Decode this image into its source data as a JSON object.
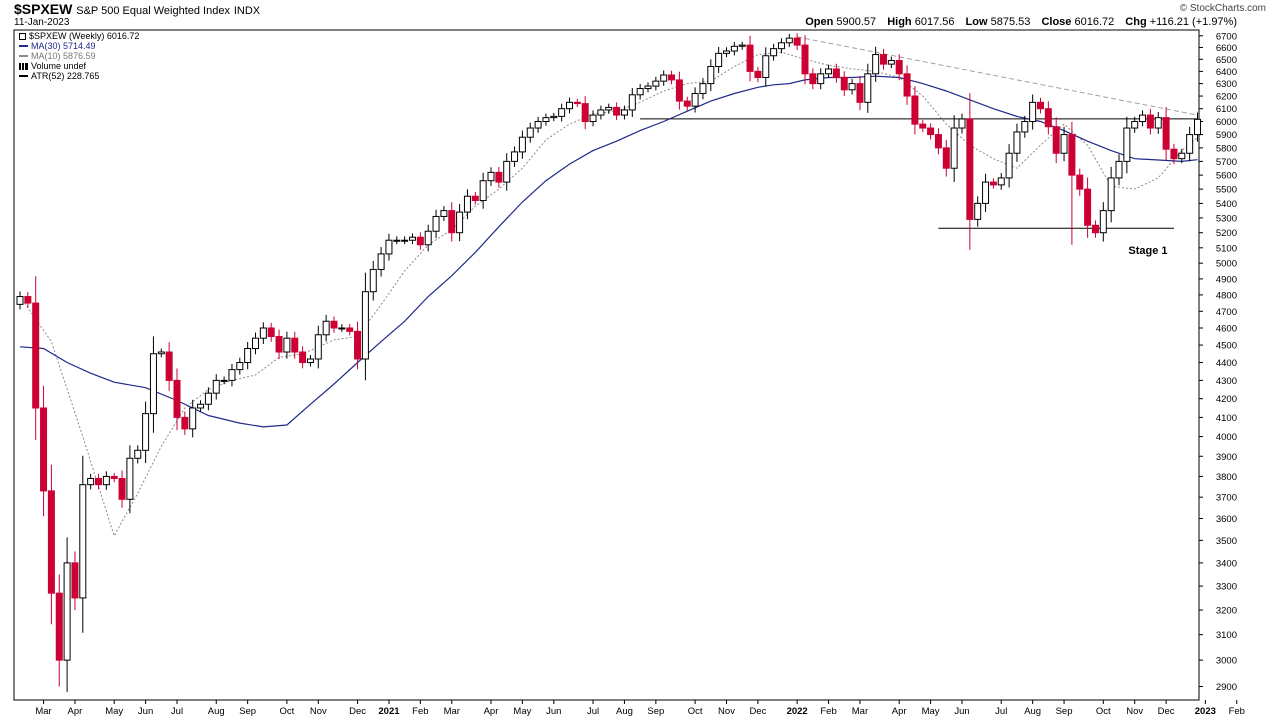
{
  "header": {
    "symbol": "$SPXEW",
    "name": "S&P 500 Equal Weighted Index",
    "exchange": "INDX",
    "date": "11-Jan-2023",
    "brand": "© StockCharts.com",
    "open_label": "Open",
    "open_value": "5900.57",
    "high_label": "High",
    "high_value": "6017.56",
    "low_label": "Low",
    "low_value": "5875.53",
    "close_label": "Close",
    "close_value": "6016.72",
    "chg_label": "Chg",
    "chg_value": "+116.21 (+1.97%)"
  },
  "legend": {
    "main": "$SPXEW (Weekly) 6016.72",
    "ma30": "MA(30) 5714.49",
    "ma10": "MA(10) 5876.59",
    "volume": "Volume undef",
    "atr": "ATR(52) 228.765"
  },
  "colors": {
    "up": "#000000",
    "down": "#cc0033",
    "ma30": "#1f2a8a",
    "ma10": "#8a8a8a",
    "trend": "#a0a0a0"
  },
  "chart_data": {
    "type": "candlestick",
    "scale": "log",
    "ylim": [
      2850,
      6750
    ],
    "y_ticks": [
      2900,
      3000,
      3100,
      3200,
      3300,
      3400,
      3500,
      3600,
      3700,
      3800,
      3900,
      4000,
      4100,
      4200,
      4300,
      4400,
      4500,
      4600,
      4700,
      4800,
      4900,
      5000,
      5100,
      5200,
      5300,
      5400,
      5500,
      5600,
      5700,
      5800,
      5900,
      6000,
      6100,
      6200,
      6300,
      6400,
      6500,
      6600,
      6700
    ],
    "x_labels": [
      {
        "label": "Mar",
        "i": 3,
        "bold": false
      },
      {
        "label": "Apr",
        "i": 7,
        "bold": false
      },
      {
        "label": "May",
        "i": 12,
        "bold": false
      },
      {
        "label": "Jun",
        "i": 16,
        "bold": false
      },
      {
        "label": "Jul",
        "i": 20,
        "bold": false
      },
      {
        "label": "Aug",
        "i": 25,
        "bold": false
      },
      {
        "label": "Sep",
        "i": 29,
        "bold": false
      },
      {
        "label": "Oct",
        "i": 34,
        "bold": false
      },
      {
        "label": "Nov",
        "i": 38,
        "bold": false
      },
      {
        "label": "Dec",
        "i": 43,
        "bold": false
      },
      {
        "label": "2021",
        "i": 47,
        "bold": true
      },
      {
        "label": "Feb",
        "i": 51,
        "bold": false
      },
      {
        "label": "Mar",
        "i": 55,
        "bold": false
      },
      {
        "label": "Apr",
        "i": 60,
        "bold": false
      },
      {
        "label": "May",
        "i": 64,
        "bold": false
      },
      {
        "label": "Jun",
        "i": 68,
        "bold": false
      },
      {
        "label": "Jul",
        "i": 73,
        "bold": false
      },
      {
        "label": "Aug",
        "i": 77,
        "bold": false
      },
      {
        "label": "Sep",
        "i": 81,
        "bold": false
      },
      {
        "label": "Oct",
        "i": 86,
        "bold": false
      },
      {
        "label": "Nov",
        "i": 90,
        "bold": false
      },
      {
        "label": "Dec",
        "i": 94,
        "bold": false
      },
      {
        "label": "2022",
        "i": 99,
        "bold": true
      },
      {
        "label": "Feb",
        "i": 103,
        "bold": false
      },
      {
        "label": "Mar",
        "i": 107,
        "bold": false
      },
      {
        "label": "Apr",
        "i": 112,
        "bold": false
      },
      {
        "label": "May",
        "i": 116,
        "bold": false
      },
      {
        "label": "Jun",
        "i": 120,
        "bold": false
      },
      {
        "label": "Jul",
        "i": 125,
        "bold": false
      },
      {
        "label": "Aug",
        "i": 129,
        "bold": false
      },
      {
        "label": "Sep",
        "i": 133,
        "bold": false
      },
      {
        "label": "Oct",
        "i": 138,
        "bold": false
      },
      {
        "label": "Nov",
        "i": 142,
        "bold": false
      },
      {
        "label": "Dec",
        "i": 146,
        "bold": false
      },
      {
        "label": "2023",
        "i": 151,
        "bold": true
      },
      {
        "label": "Feb",
        "i": 155,
        "bold": false
      }
    ],
    "closes": [
      4790,
      4750,
      4150,
      3730,
      3270,
      3000,
      3400,
      3250,
      3760,
      3790,
      3760,
      3800,
      3790,
      3690,
      3890,
      3930,
      4120,
      4450,
      4460,
      4300,
      4100,
      4040,
      4150,
      4170,
      4230,
      4300,
      4300,
      4360,
      4400,
      4480,
      4540,
      4600,
      4550,
      4460,
      4540,
      4460,
      4400,
      4420,
      4560,
      4640,
      4600,
      4600,
      4580,
      4420,
      4820,
      4960,
      5060,
      5150,
      5150,
      5150,
      5170,
      5120,
      5210,
      5310,
      5350,
      5200,
      5340,
      5450,
      5420,
      5560,
      5620,
      5550,
      5700,
      5770,
      5880,
      5950,
      6000,
      6030,
      6040,
      6100,
      6150,
      6140,
      6000,
      6050,
      6090,
      6110,
      6050,
      6090,
      6210,
      6260,
      6280,
      6320,
      6370,
      6330,
      6160,
      6120,
      6220,
      6300,
      6440,
      6550,
      6570,
      6610,
      6620,
      6400,
      6350,
      6530,
      6590,
      6640,
      6680,
      6620,
      6380,
      6300,
      6380,
      6420,
      6350,
      6250,
      6300,
      6150,
      6380,
      6540,
      6460,
      6490,
      6380,
      6200,
      5980,
      5950,
      5900,
      5800,
      5650,
      5950,
      6020,
      5290,
      5400,
      5550,
      5530,
      5580,
      5760,
      5920,
      6000,
      6150,
      6100,
      5960,
      5760,
      5900,
      5600,
      5500,
      5250,
      5200,
      5350,
      5580,
      5700,
      5950,
      6000,
      6050,
      5950,
      6030,
      5790,
      5720,
      5760,
      5900,
      6017
    ],
    "lows_override": [
      {
        "i": 5,
        "low": 2900
      },
      {
        "i": 6,
        "low": 2880
      },
      {
        "i": 134,
        "low": 5120
      }
    ],
    "ma30": [
      [
        0,
        4490
      ],
      [
        3,
        4480
      ],
      [
        6,
        4400
      ],
      [
        9,
        4340
      ],
      [
        12,
        4290
      ],
      [
        16,
        4260
      ],
      [
        20,
        4190
      ],
      [
        24,
        4110
      ],
      [
        28,
        4070
      ],
      [
        31,
        4050
      ],
      [
        34,
        4060
      ],
      [
        37,
        4170
      ],
      [
        40,
        4280
      ],
      [
        43,
        4400
      ],
      [
        46,
        4520
      ],
      [
        49,
        4640
      ],
      [
        52,
        4790
      ],
      [
        55,
        4920
      ],
      [
        58,
        5070
      ],
      [
        61,
        5240
      ],
      [
        64,
        5410
      ],
      [
        67,
        5560
      ],
      [
        70,
        5680
      ],
      [
        73,
        5780
      ],
      [
        76,
        5850
      ],
      [
        79,
        5930
      ],
      [
        82,
        6000
      ],
      [
        85,
        6080
      ],
      [
        88,
        6160
      ],
      [
        91,
        6220
      ],
      [
        94,
        6270
      ],
      [
        96,
        6290
      ],
      [
        98,
        6300
      ],
      [
        100,
        6330
      ],
      [
        103,
        6350
      ],
      [
        106,
        6350
      ],
      [
        109,
        6360
      ],
      [
        112,
        6350
      ],
      [
        115,
        6300
      ],
      [
        118,
        6240
      ],
      [
        121,
        6170
      ],
      [
        124,
        6100
      ],
      [
        127,
        6040
      ],
      [
        130,
        6000
      ],
      [
        133,
        5930
      ],
      [
        136,
        5850
      ],
      [
        139,
        5780
      ],
      [
        142,
        5720
      ],
      [
        145,
        5710
      ],
      [
        148,
        5700
      ],
      [
        150,
        5712
      ]
    ],
    "ma10": [
      [
        0,
        4790
      ],
      [
        4,
        4520
      ],
      [
        8,
        4000
      ],
      [
        12,
        3520
      ],
      [
        15,
        3720
      ],
      [
        18,
        3950
      ],
      [
        21,
        4150
      ],
      [
        24,
        4250
      ],
      [
        27,
        4300
      ],
      [
        30,
        4330
      ],
      [
        33,
        4430
      ],
      [
        36,
        4450
      ],
      [
        40,
        4530
      ],
      [
        43,
        4550
      ],
      [
        46,
        4740
      ],
      [
        49,
        4950
      ],
      [
        52,
        5120
      ],
      [
        55,
        5220
      ],
      [
        58,
        5380
      ],
      [
        61,
        5500
      ],
      [
        64,
        5650
      ],
      [
        67,
        5860
      ],
      [
        70,
        5980
      ],
      [
        73,
        6060
      ],
      [
        76,
        6080
      ],
      [
        79,
        6150
      ],
      [
        82,
        6240
      ],
      [
        85,
        6300
      ],
      [
        88,
        6320
      ],
      [
        91,
        6440
      ],
      [
        94,
        6540
      ],
      [
        97,
        6560
      ],
      [
        100,
        6500
      ],
      [
        103,
        6450
      ],
      [
        106,
        6420
      ],
      [
        109,
        6400
      ],
      [
        112,
        6350
      ],
      [
        115,
        6200
      ],
      [
        118,
        5980
      ],
      [
        121,
        5820
      ],
      [
        124,
        5720
      ],
      [
        127,
        5650
      ],
      [
        130,
        5820
      ],
      [
        133,
        5980
      ],
      [
        136,
        5820
      ],
      [
        139,
        5520
      ],
      [
        142,
        5500
      ],
      [
        145,
        5580
      ],
      [
        148,
        5780
      ],
      [
        150,
        5877
      ]
    ],
    "trendline": [
      [
        99,
        6690
      ],
      [
        150,
        6050
      ]
    ],
    "support_upper": [
      [
        79,
        6020
      ],
      [
        150,
        6020
      ]
    ],
    "support_lower": [
      [
        117,
        5230
      ],
      [
        147,
        5230
      ]
    ],
    "annotation": "Stage 1"
  }
}
